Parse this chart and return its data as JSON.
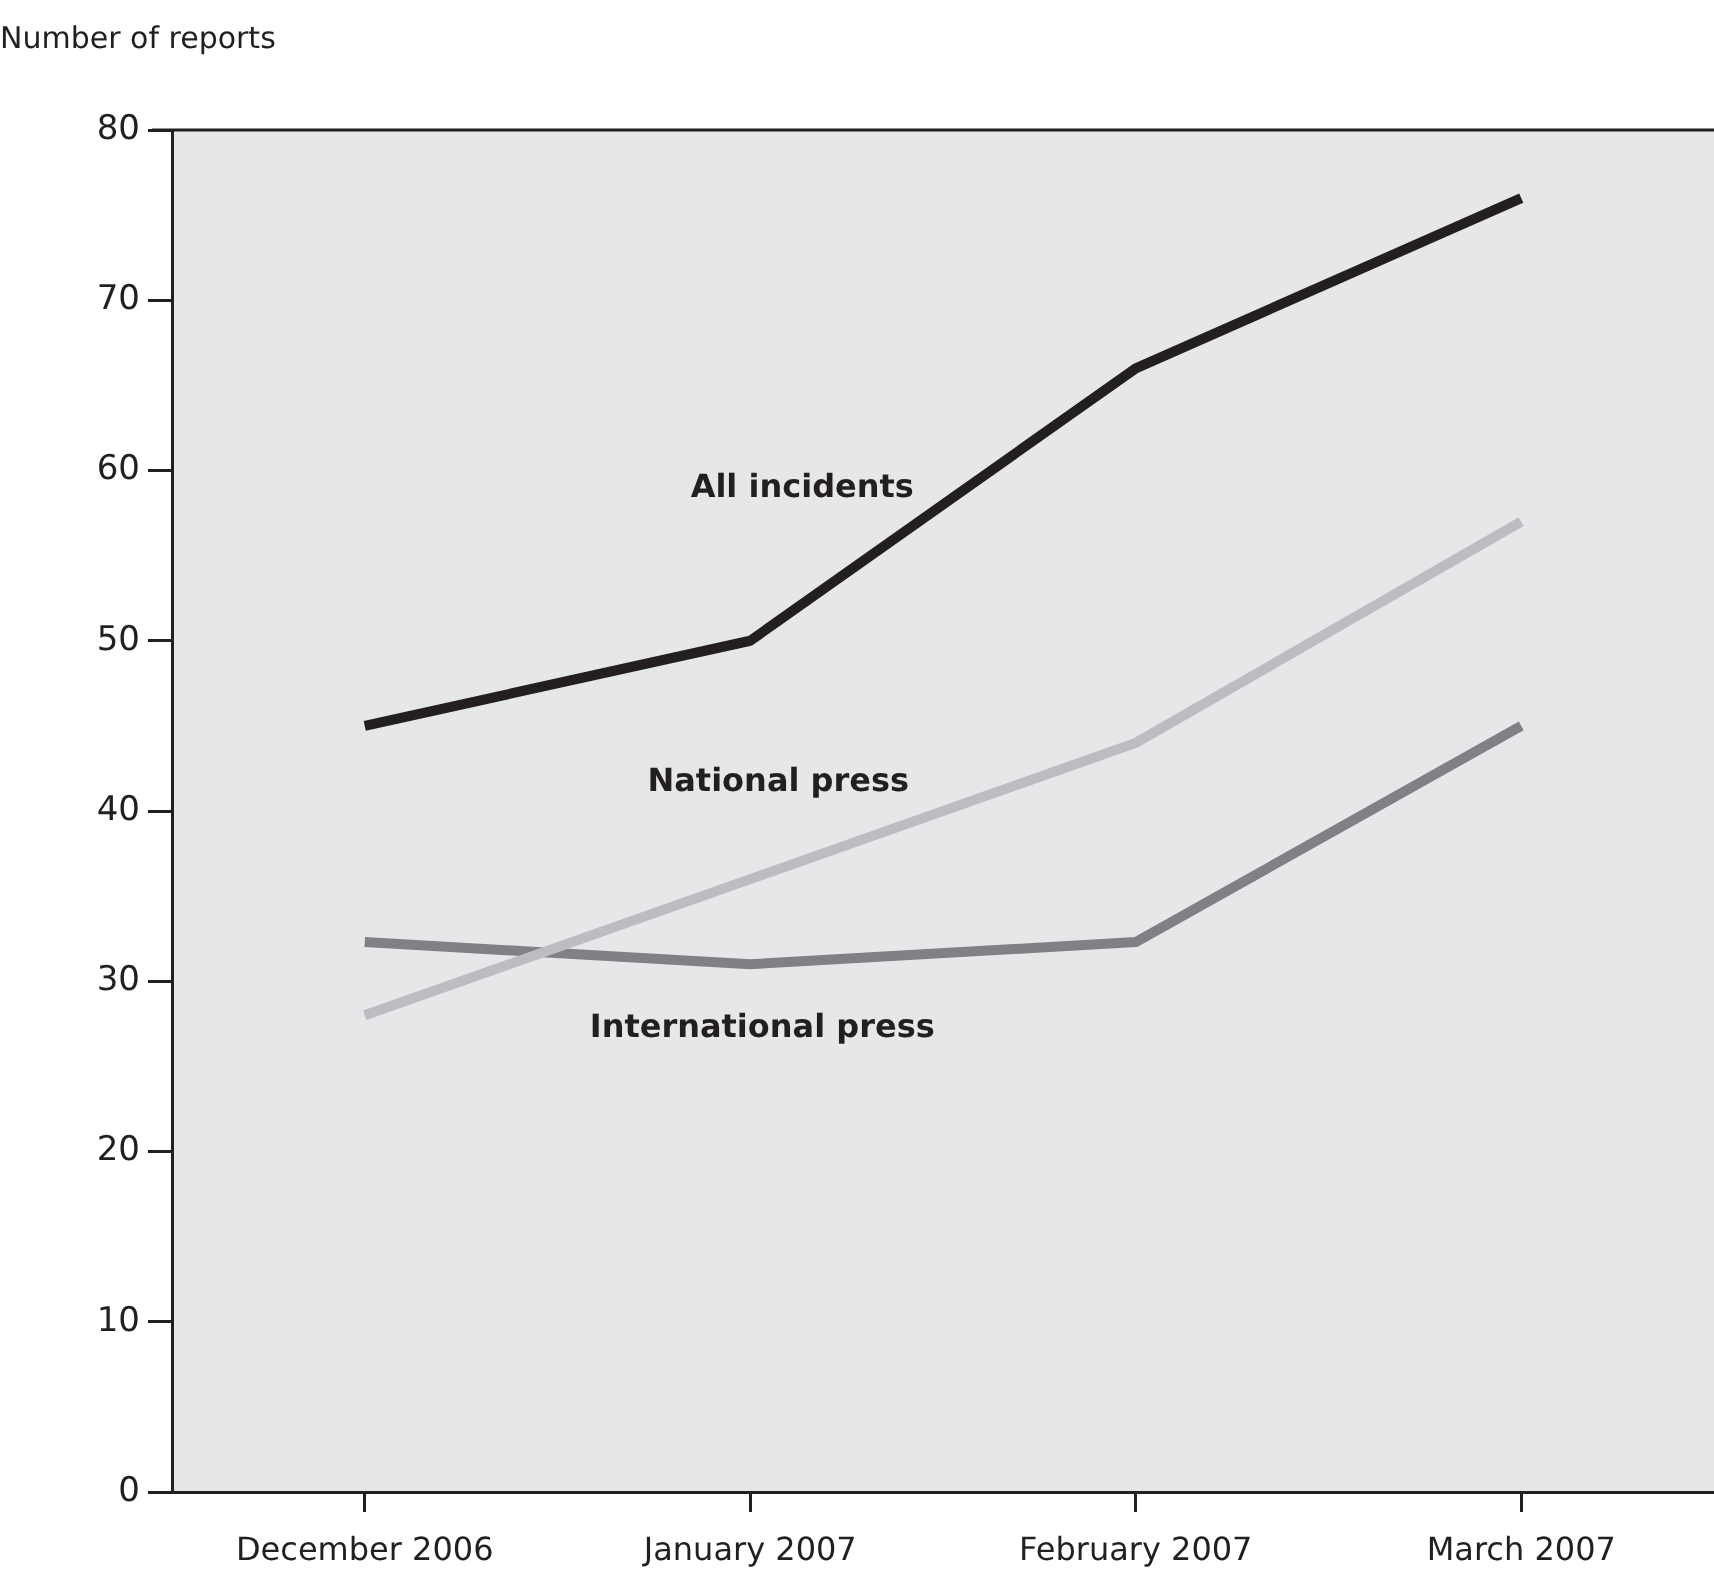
{
  "chart_data": {
    "type": "line",
    "ylabel": "Number of reports",
    "categories": [
      "December 2006",
      "January 2007",
      "February 2007",
      "March 2007"
    ],
    "series": [
      {
        "name": "All incidents",
        "color": "#231f20",
        "values": [
          45,
          50,
          66,
          76
        ]
      },
      {
        "name": "National press",
        "color": "#bcbdc0",
        "values": [
          28,
          36,
          44,
          57
        ]
      },
      {
        "name": "International press",
        "color": "#808184",
        "values": [
          32.3,
          31,
          32.3,
          45
        ]
      }
    ],
    "ylim": [
      0,
      80
    ],
    "yticks": [
      0,
      10,
      20,
      30,
      40,
      50,
      60,
      70,
      80
    ],
    "grid": false,
    "legend": false,
    "marker": "none",
    "line_style": "solid"
  }
}
